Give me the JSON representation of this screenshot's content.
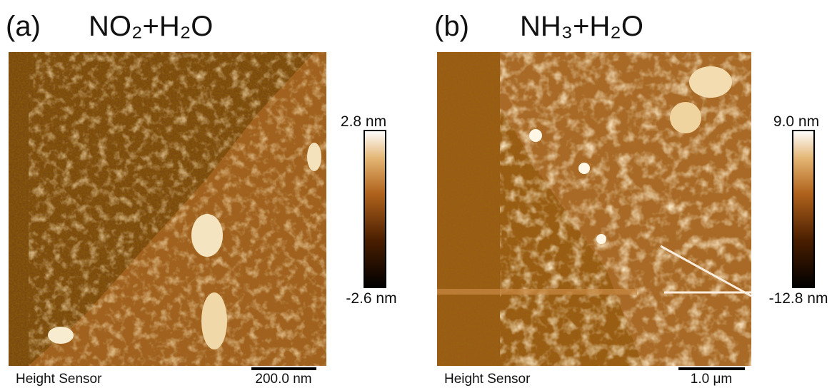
{
  "panels": [
    {
      "label": "(a)",
      "title": "NO₂+H₂O",
      "colorbar": {
        "max": "2.8 nm",
        "min": "-2.6 nm"
      },
      "caption": "Height Sensor",
      "scale_bar": "200.0 nm"
    },
    {
      "label": "(b)",
      "title": "NH₃+H₂O",
      "colorbar": {
        "max": "9.0 nm",
        "min": "-12.8 nm"
      },
      "caption": "Height Sensor",
      "scale_bar": "1.0 μm"
    }
  ]
}
